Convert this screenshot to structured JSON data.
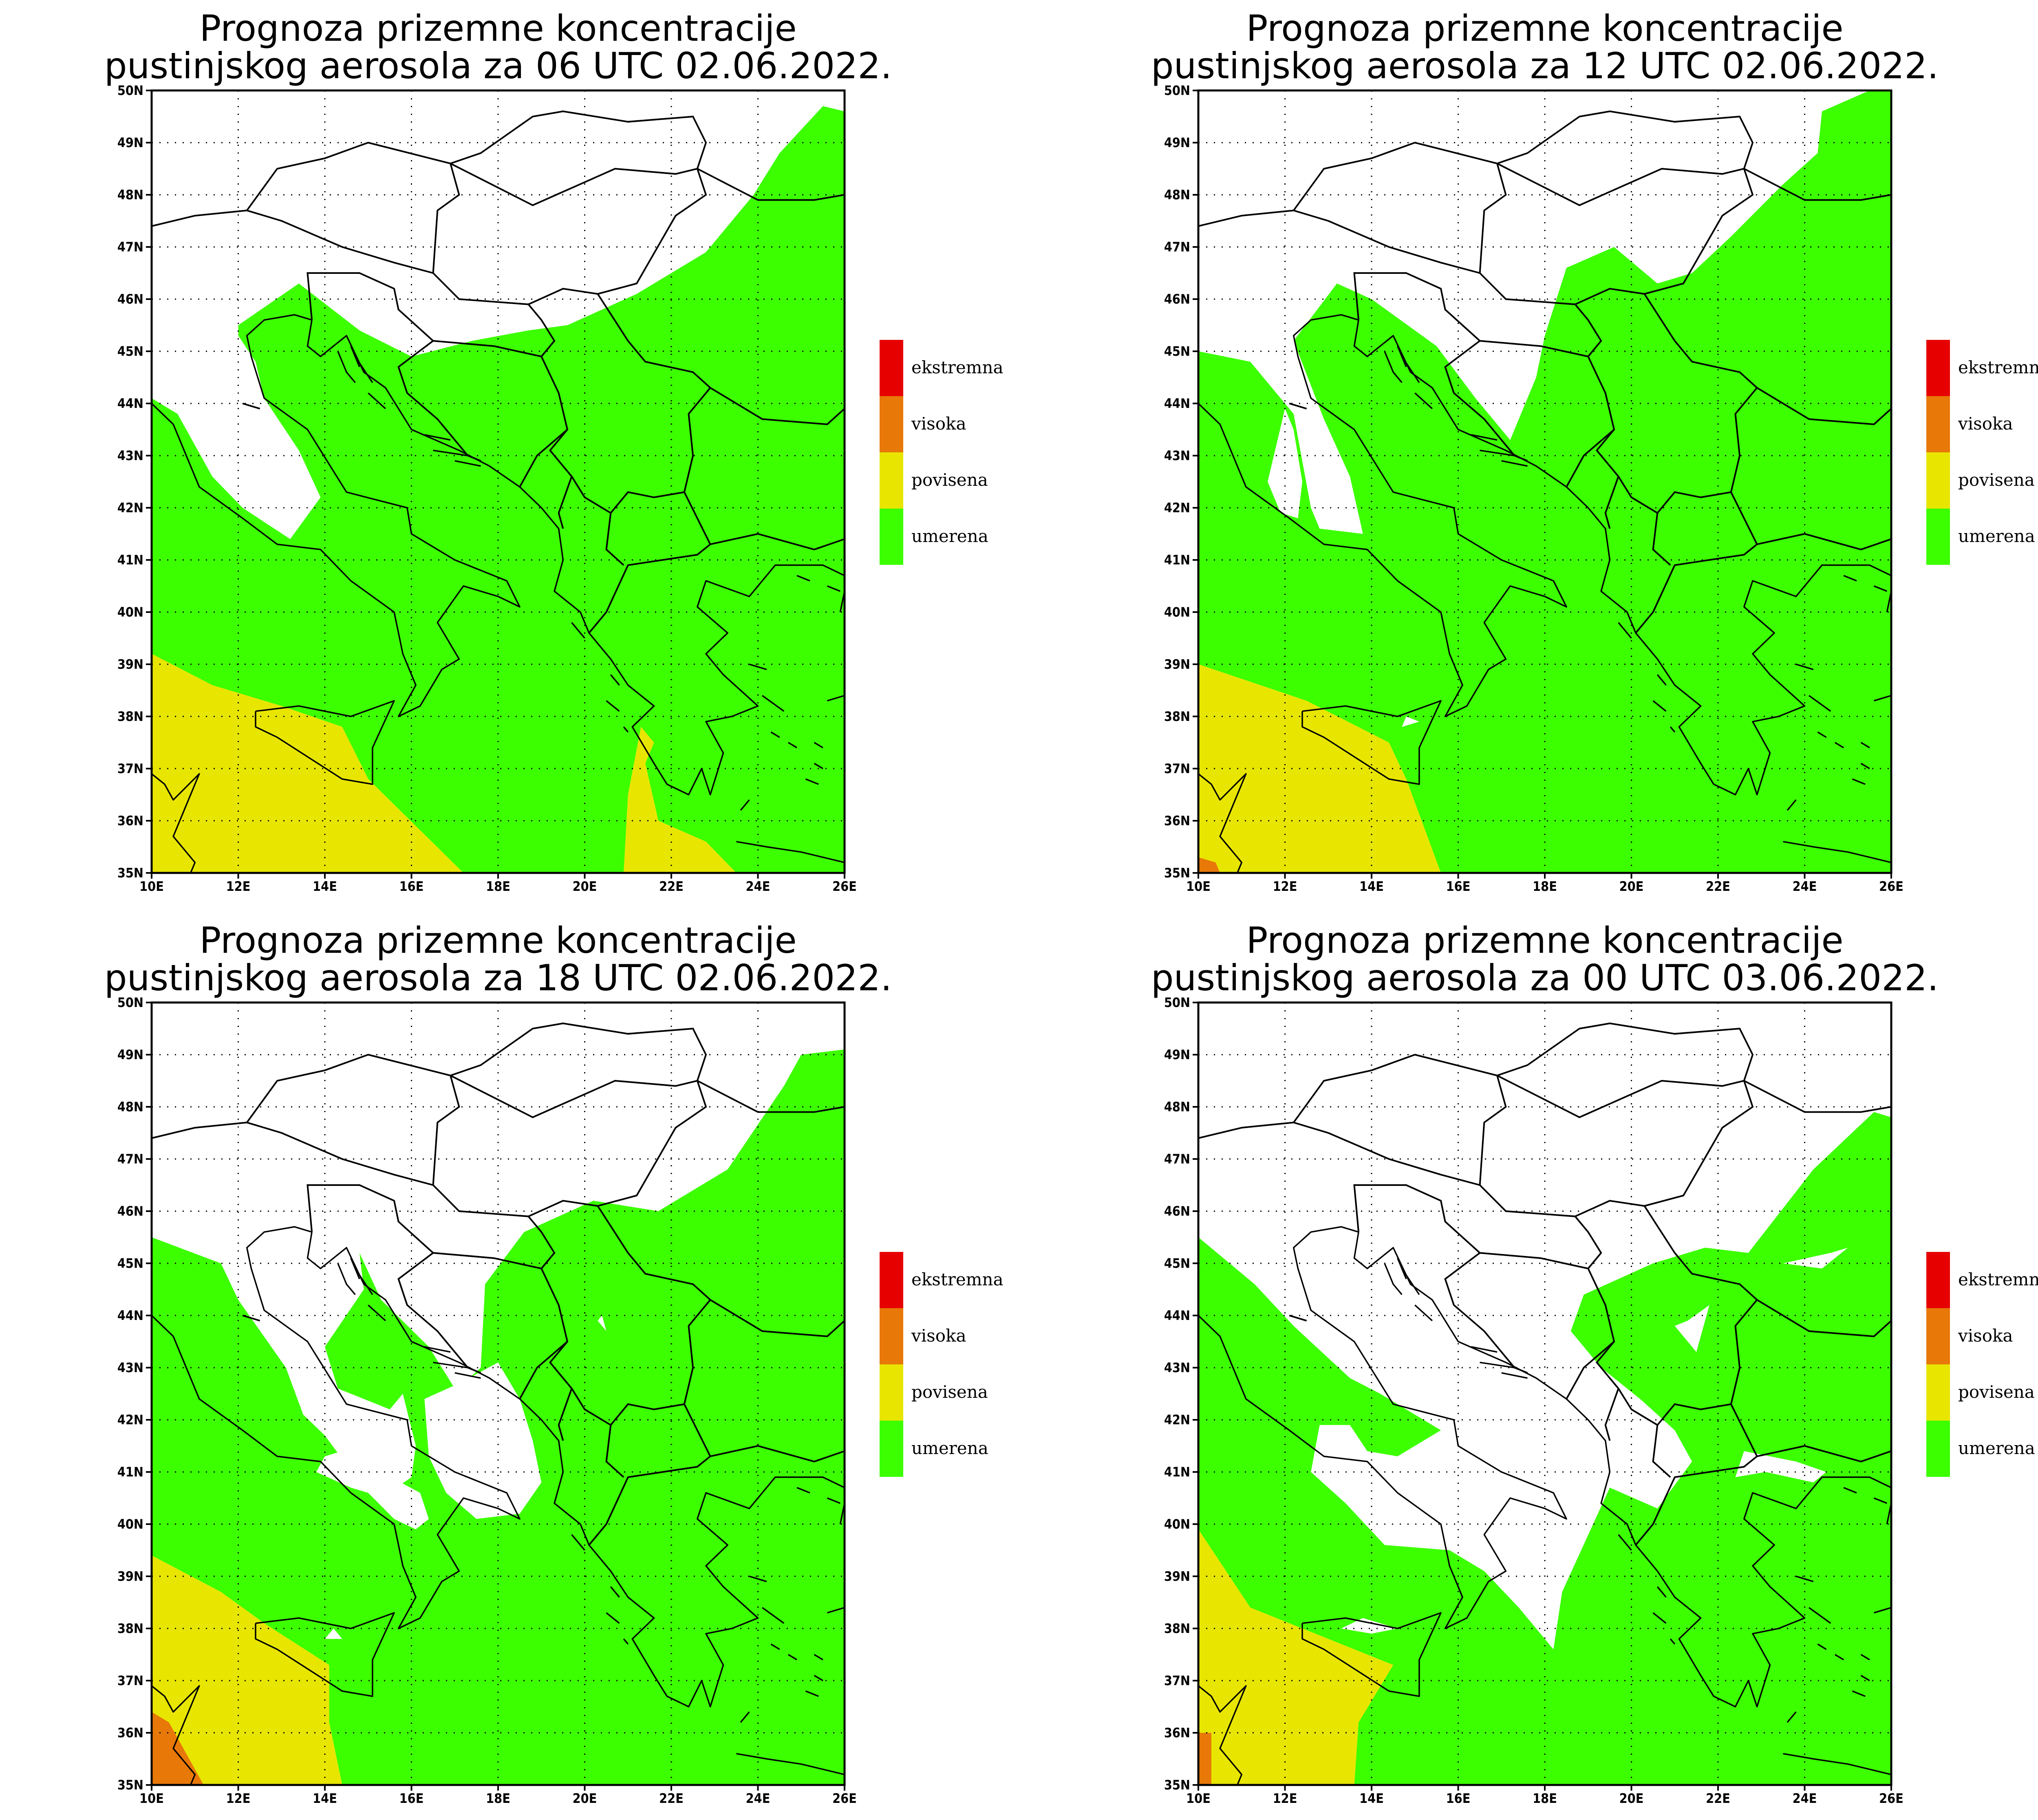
{
  "colors": {
    "umerena": "#3cff00",
    "povisena": "#e8e600",
    "visoka": "#e87808",
    "ekstremna": "#e60000"
  },
  "legend": [
    "ekstremna",
    "visoka",
    "povisena",
    "umerena"
  ],
  "axes": {
    "lat_labels": [
      "35N",
      "36N",
      "37N",
      "38N",
      "39N",
      "40N",
      "41N",
      "42N",
      "43N",
      "44N",
      "45N",
      "46N",
      "47N",
      "48N",
      "49N",
      "50N"
    ],
    "lon_labels": [
      "10E",
      "12E",
      "14E",
      "16E",
      "18E",
      "20E",
      "22E",
      "24E",
      "26E"
    ]
  },
  "panels": [
    {
      "title_line1": "Prognoza prizemne koncentracije",
      "title_line2": "pustinjskog aerosola za 06 UTC 02.06.2022."
    },
    {
      "title_line1": "Prognoza prizemne koncentracije",
      "title_line2": "pustinjskog aerosola za 12 UTC 02.06.2022."
    },
    {
      "title_line1": "Prognoza prizemne koncentracije",
      "title_line2": "pustinjskog aerosola za 18 UTC 02.06.2022."
    },
    {
      "title_line1": "Prognoza prizemne koncentracije",
      "title_line2": "pustinjskog aerosola za 00 UTC 03.06.2022."
    }
  ]
}
